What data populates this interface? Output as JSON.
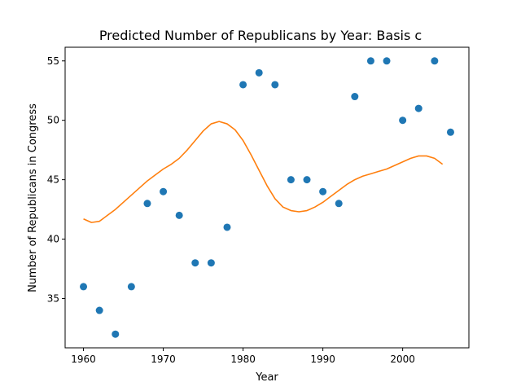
{
  "chart_data": {
    "type": "scatter",
    "title": "Predicted Number of Republicans by Year: Basis c",
    "xlabel": "Year",
    "ylabel": "Number of Republicans in Congress",
    "xlim": [
      1957.7,
      2008.3
    ],
    "ylim": [
      30.85,
      56.15
    ],
    "grid": false,
    "x_ticks": [
      1960,
      1970,
      1980,
      1990,
      2000
    ],
    "y_ticks": [
      35,
      40,
      45,
      50,
      55
    ],
    "colors": {
      "points": "#1f77b4",
      "fit": "#ff7f0e"
    },
    "series": [
      {
        "type": "scatter",
        "x": [
          1960,
          1962,
          1964,
          1966,
          1968,
          1970,
          1972,
          1974,
          1976,
          1978,
          1980,
          1982,
          1984,
          1986,
          1988,
          1990,
          1992,
          1994,
          1996,
          1998,
          2000,
          2002,
          2004,
          2006
        ],
        "y": [
          36,
          34,
          32,
          36,
          43,
          44,
          42,
          38,
          38,
          41,
          53,
          54,
          53,
          45,
          45,
          44,
          43,
          52,
          55,
          55,
          50,
          51,
          55,
          49
        ]
      },
      {
        "type": "line",
        "x": [
          1960,
          1961,
          1962,
          1963,
          1964,
          1965,
          1966,
          1967,
          1968,
          1969,
          1970,
          1971,
          1972,
          1973,
          1974,
          1975,
          1976,
          1977,
          1978,
          1979,
          1980,
          1981,
          1982,
          1983,
          1984,
          1985,
          1986,
          1987,
          1988,
          1989,
          1990,
          1991,
          1992,
          1993,
          1994,
          1995,
          1996,
          1997,
          1998,
          1999,
          2000,
          2001,
          2002,
          2003,
          2004,
          2005
        ],
        "y": [
          41.7,
          41.4,
          41.5,
          42.0,
          42.5,
          43.1,
          43.7,
          44.3,
          44.9,
          45.4,
          45.9,
          46.3,
          46.8,
          47.5,
          48.3,
          49.1,
          49.7,
          49.9,
          49.7,
          49.2,
          48.3,
          47.1,
          45.8,
          44.5,
          43.4,
          42.7,
          42.4,
          42.3,
          42.4,
          42.7,
          43.1,
          43.6,
          44.1,
          44.6,
          45.0,
          45.3,
          45.5,
          45.7,
          45.9,
          46.2,
          46.5,
          46.8,
          47.0,
          47.0,
          46.8,
          46.3
        ]
      }
    ]
  }
}
